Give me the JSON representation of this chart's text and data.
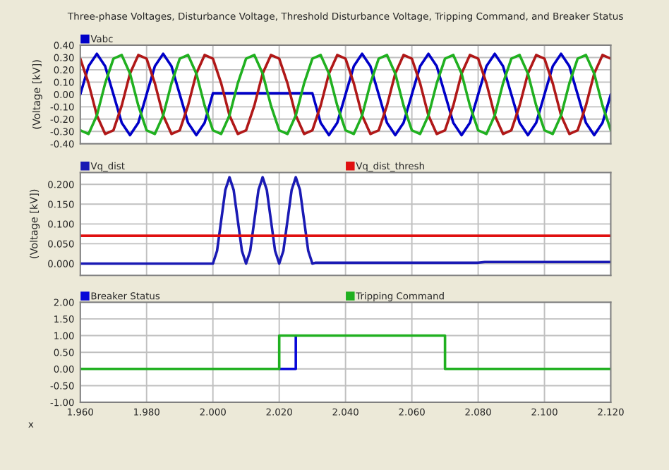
{
  "chart_data": [
    {
      "type": "line",
      "title": "Three-phase Voltages, Disturbance Voltage, Threshold Disturbance Voltage, Tripping Command, and Breaker Status",
      "ylabel": "(Voltage [kV])",
      "xlim": [
        1.96,
        2.12
      ],
      "xticks": [
        1.96,
        1.98,
        2.0,
        2.02,
        2.04,
        2.06,
        2.08,
        2.1,
        2.12
      ],
      "ylim": [
        -0.4,
        0.4
      ],
      "yticks": [
        {
          "value": -0.4,
          "label": "-0.40"
        },
        {
          "value": -0.3,
          "label": "-0.30"
        },
        {
          "value": -0.2,
          "label": "-0.20"
        },
        {
          "value": -0.1,
          "label": "-0.10"
        },
        {
          "value": 0,
          "label": "0.00"
        },
        {
          "value": 0.1,
          "label": "0.10"
        },
        {
          "value": 0.2,
          "label": "0.20"
        },
        {
          "value": 0.3,
          "label": "0.30"
        },
        {
          "value": 0.4,
          "label": "0.40"
        }
      ],
      "grid": true,
      "legend": "top",
      "tick_labels": "y",
      "x": [
        1.96,
        1.9625,
        1.965,
        1.9675,
        1.97,
        1.9725,
        1.975,
        1.9775,
        1.98,
        1.9825,
        1.985,
        1.9875,
        1.99,
        1.9925,
        1.995,
        1.9975,
        2.0,
        2.0025,
        2.005,
        2.0075,
        2.01,
        2.0125,
        2.015,
        2.0175,
        2.02,
        2.0225,
        2.025,
        2.0275,
        2.03,
        2.0325,
        2.035,
        2.0375,
        2.04,
        2.0425,
        2.045,
        2.0475,
        2.05,
        2.0525,
        2.055,
        2.0575,
        2.06,
        2.0625,
        2.065,
        2.0675,
        2.07,
        2.0725,
        2.075,
        2.0775,
        2.08,
        2.0825,
        2.085,
        2.0875,
        2.09,
        2.0925,
        2.095,
        2.0975,
        2.1,
        2.1025,
        2.105,
        2.1075,
        2.11,
        2.1125,
        2.115,
        2.1175,
        2.12
      ],
      "series": [
        {
          "name": "Vabc",
          "color": "#0000c8",
          "values": [
            0,
            0.23,
            0.33,
            0.23,
            0,
            -0.23,
            -0.33,
            -0.23,
            0,
            0.23,
            0.33,
            0.23,
            0,
            -0.23,
            -0.33,
            -0.23,
            0.01,
            0.01,
            0.01,
            0.01,
            0.01,
            0.01,
            0.01,
            0.01,
            0.01,
            0.01,
            0.01,
            0.01,
            0.01,
            -0.23,
            -0.33,
            -0.23,
            0,
            0.23,
            0.33,
            0.23,
            0,
            -0.23,
            -0.33,
            -0.23,
            0,
            0.23,
            0.33,
            0.23,
            0,
            -0.23,
            -0.33,
            -0.23,
            0,
            0.23,
            0.33,
            0.23,
            0,
            -0.23,
            -0.33,
            -0.23,
            0,
            0.23,
            0.33,
            0.23,
            0,
            -0.23,
            -0.33,
            -0.23,
            0
          ]
        },
        {
          "color": "#b01818",
          "values": [
            0.29,
            0.09,
            -0.17,
            -0.32,
            -0.29,
            -0.09,
            0.17,
            0.32,
            0.29,
            0.09,
            -0.17,
            -0.32,
            -0.29,
            -0.09,
            0.17,
            0.32,
            0.29,
            0.09,
            -0.17,
            -0.32,
            -0.29,
            -0.09,
            0.17,
            0.32,
            0.29,
            0.09,
            -0.17,
            -0.32,
            -0.29,
            -0.09,
            0.17,
            0.32,
            0.29,
            0.09,
            -0.17,
            -0.32,
            -0.29,
            -0.09,
            0.17,
            0.32,
            0.29,
            0.09,
            -0.17,
            -0.32,
            -0.29,
            -0.09,
            0.17,
            0.32,
            0.29,
            0.09,
            -0.17,
            -0.32,
            -0.29,
            -0.09,
            0.17,
            0.32,
            0.29,
            0.09,
            -0.17,
            -0.32,
            -0.29,
            -0.09,
            0.17,
            0.32,
            0.29
          ]
        },
        {
          "color": "#20b020",
          "values": [
            -0.29,
            -0.32,
            -0.17,
            0.09,
            0.29,
            0.32,
            0.17,
            -0.09,
            -0.29,
            -0.32,
            -0.17,
            0.09,
            0.29,
            0.32,
            0.17,
            -0.09,
            -0.29,
            -0.32,
            -0.17,
            0.09,
            0.29,
            0.32,
            0.17,
            -0.09,
            -0.29,
            -0.32,
            -0.17,
            0.09,
            0.29,
            0.32,
            0.17,
            -0.09,
            -0.29,
            -0.32,
            -0.17,
            0.09,
            0.29,
            0.32,
            0.17,
            -0.09,
            -0.29,
            -0.32,
            -0.17,
            0.09,
            0.29,
            0.32,
            0.17,
            -0.09,
            -0.29,
            -0.32,
            -0.17,
            0.09,
            0.29,
            0.32,
            0.17,
            -0.09,
            -0.29,
            -0.32,
            -0.17,
            0.09,
            0.29,
            0.32,
            0.17,
            -0.09,
            -0.29
          ]
        }
      ]
    },
    {
      "type": "line",
      "ylabel": "(Voltage [kV])",
      "xlim": [
        1.96,
        2.12
      ],
      "xticks": [
        1.96,
        1.98,
        2.0,
        2.02,
        2.04,
        2.06,
        2.08,
        2.1,
        2.12
      ],
      "ylim": [
        -0.03,
        0.23
      ],
      "yticks": [
        {
          "value": 0,
          "label": "0.000"
        },
        {
          "value": 0.05,
          "label": "0.050"
        },
        {
          "value": 0.1,
          "label": "0.100"
        },
        {
          "value": 0.15,
          "label": "0.150"
        },
        {
          "value": 0.2,
          "label": "0.200"
        }
      ],
      "grid": true,
      "legend": "top",
      "tick_labels": "y",
      "series": [
        {
          "name": "Vq_dist",
          "color": "#1a1ab4",
          "x": [
            1.96,
            1.999,
            2.0,
            2.00125,
            2.0025,
            2.00375,
            2.005,
            2.00625,
            2.0075,
            2.00875,
            2.01,
            2.01125,
            2.0125,
            2.01375,
            2.015,
            2.01625,
            2.0175,
            2.01875,
            2.02,
            2.02125,
            2.0225,
            2.02375,
            2.025,
            2.02625,
            2.0275,
            2.02875,
            2.03,
            2.031,
            2.08,
            2.082,
            2.12
          ],
          "values": [
            0,
            0,
            0,
            0.032,
            0.109,
            0.186,
            0.218,
            0.186,
            0.109,
            0.032,
            0,
            0.032,
            0.109,
            0.186,
            0.218,
            0.186,
            0.109,
            0.032,
            0,
            0.032,
            0.109,
            0.186,
            0.218,
            0.186,
            0.109,
            0.032,
            0,
            0.002,
            0.002,
            0.004,
            0.004
          ]
        },
        {
          "name": "Vq_dist_thresh",
          "color": "#e01010",
          "x": [
            1.96,
            2.12
          ],
          "values": [
            0.07,
            0.07
          ]
        }
      ]
    },
    {
      "type": "line",
      "xlabel": "x",
      "xlim": [
        1.96,
        2.12
      ],
      "xticks": [
        {
          "value": 1.96,
          "label": "1.960"
        },
        {
          "value": 1.98,
          "label": "1.980"
        },
        {
          "value": 2.0,
          "label": "2.000"
        },
        {
          "value": 2.02,
          "label": "2.020"
        },
        {
          "value": 2.04,
          "label": "2.040"
        },
        {
          "value": 2.06,
          "label": "2.060"
        },
        {
          "value": 2.08,
          "label": "2.080"
        },
        {
          "value": 2.1,
          "label": "2.100"
        },
        {
          "value": 2.12,
          "label": "2.120"
        }
      ],
      "ylim": [
        -1,
        2
      ],
      "yticks": [
        {
          "value": -1,
          "label": "-1.00"
        },
        {
          "value": -0.5,
          "label": "-0.50"
        },
        {
          "value": 0,
          "label": "0.00"
        },
        {
          "value": 0.5,
          "label": "0.50"
        },
        {
          "value": 1,
          "label": "1.00"
        },
        {
          "value": 1.5,
          "label": "1.50"
        },
        {
          "value": 2,
          "label": "2.00"
        }
      ],
      "grid": true,
      "legend": "top",
      "series": [
        {
          "name": "Breaker Status",
          "color": "#0808d8",
          "x": [
            2.02,
            2.025,
            2.025
          ],
          "values": [
            0,
            0,
            1
          ]
        },
        {
          "name": "Tripping Command",
          "color": "#20b020",
          "x": [
            1.96,
            2.02,
            2.02,
            2.07,
            2.07,
            2.12
          ],
          "values": [
            0,
            0,
            1,
            1,
            0,
            0
          ]
        }
      ]
    }
  ]
}
